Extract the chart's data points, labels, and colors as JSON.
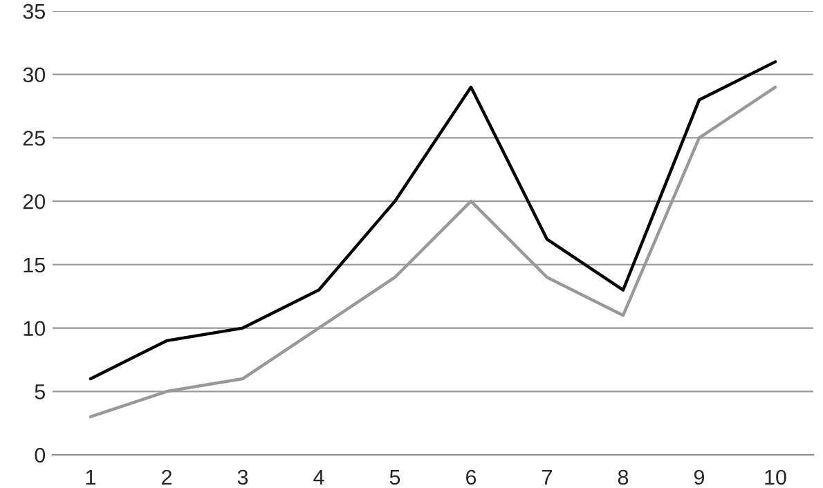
{
  "chart_data": {
    "type": "line",
    "categories": [
      "1",
      "2",
      "3",
      "4",
      "5",
      "6",
      "7",
      "8",
      "9",
      "10"
    ],
    "series": [
      {
        "color": "#000000",
        "values": [
          6,
          9,
          10,
          13,
          20,
          29,
          17,
          13,
          28,
          31
        ]
      },
      {
        "color": "#999999",
        "values": [
          3,
          5,
          6,
          10,
          14,
          20,
          14,
          11,
          25,
          29
        ]
      }
    ],
    "ylim": [
      0,
      35
    ],
    "yticks": [
      0,
      5,
      10,
      15,
      20,
      25,
      30,
      35
    ],
    "grid": "y",
    "marker": "none",
    "line_style": "solid"
  }
}
